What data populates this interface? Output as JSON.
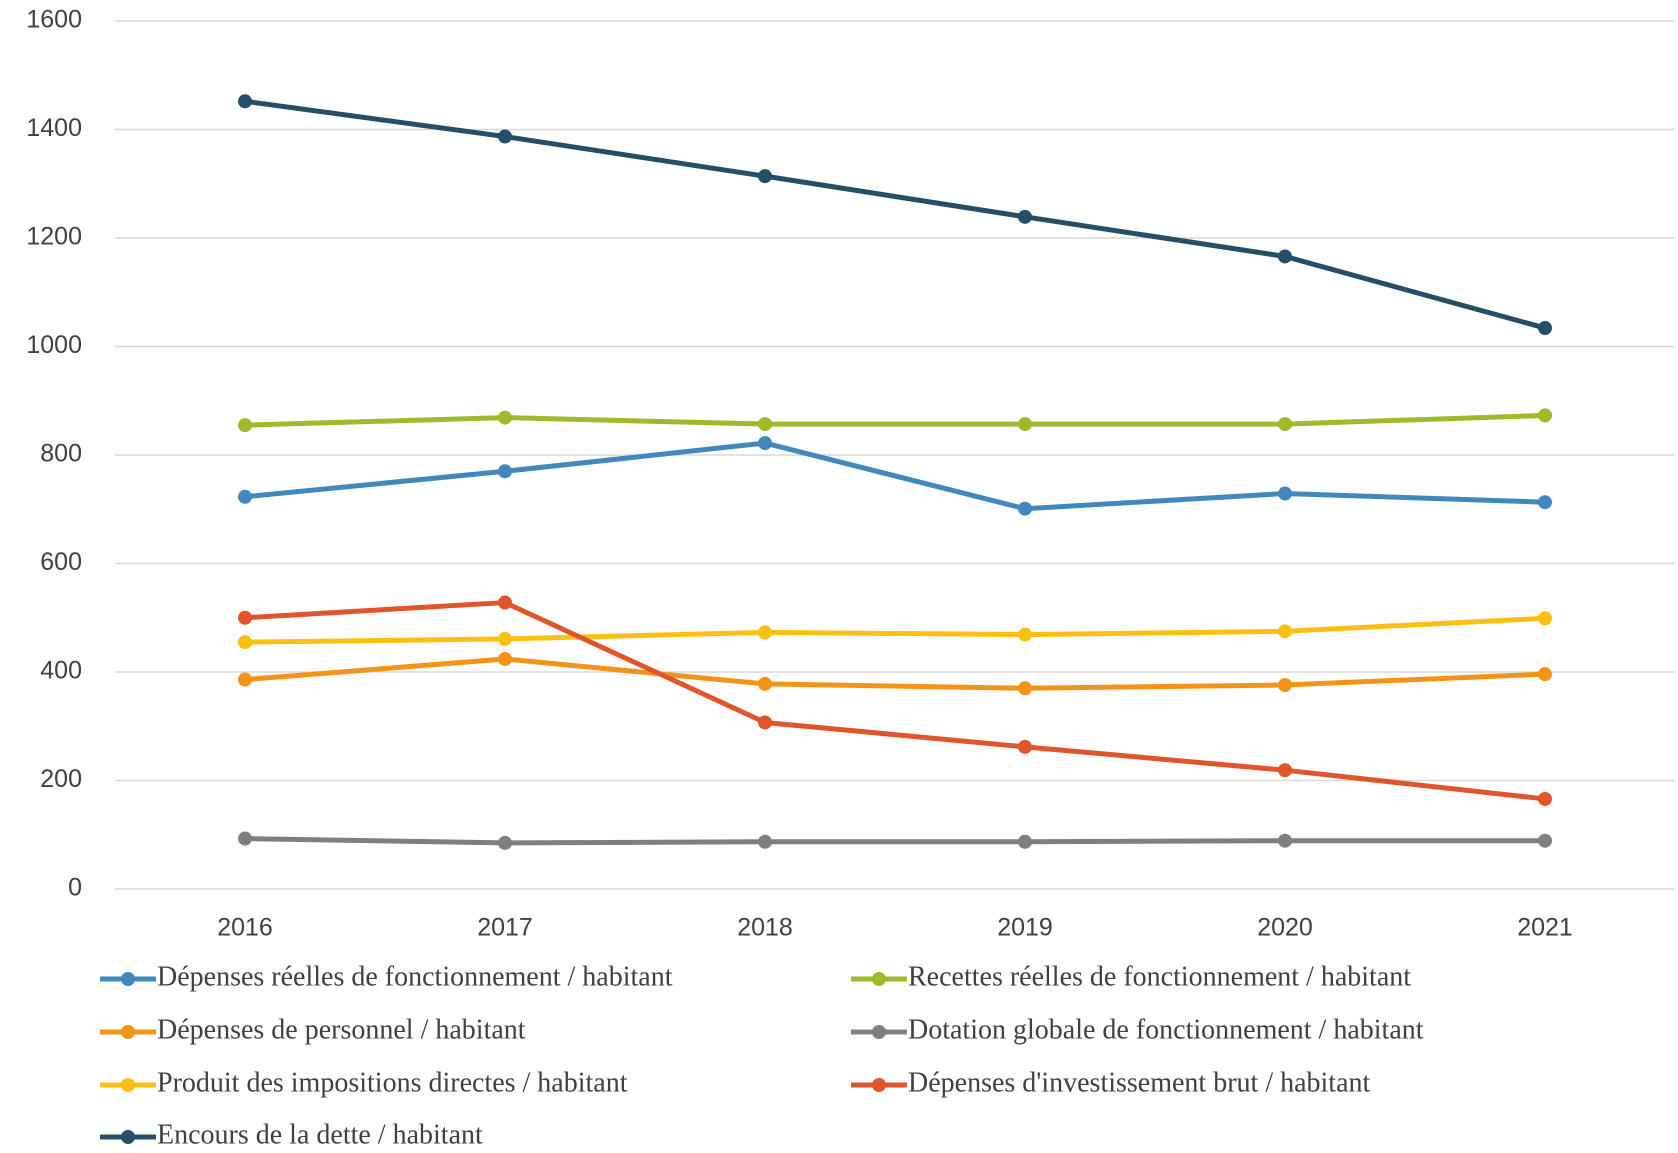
{
  "chart_data": {
    "type": "line",
    "categories": [
      "2016",
      "2017",
      "2018",
      "2019",
      "2020",
      "2021"
    ],
    "series": [
      {
        "name": "Dépenses réelles de fonctionnement / habitant",
        "color": "#4189bd",
        "values": [
          723,
          770,
          822,
          701,
          729,
          713
        ]
      },
      {
        "name": "Recettes réelles de fonctionnement / habitant",
        "color": "#9cba2c",
        "values": [
          855,
          869,
          857,
          857,
          857,
          873
        ]
      },
      {
        "name": "Dépenses de personnel / habitant",
        "color": "#f39418",
        "values": [
          386,
          424,
          378,
          370,
          376,
          396
        ]
      },
      {
        "name": "Dotation globale de fonctionnement / habitant",
        "color": "#7f7f7f",
        "values": [
          93,
          85,
          87,
          87,
          89,
          89
        ]
      },
      {
        "name": "Produit des impositions directes / habitant",
        "color": "#fdc012",
        "values": [
          455,
          461,
          473,
          469,
          475,
          499
        ]
      },
      {
        "name": "Dépenses d'investissement brut / habitant",
        "color": "#e0552b",
        "values": [
          500,
          528,
          307,
          262,
          219,
          166
        ]
      },
      {
        "name": "Encours de la dette / habitant",
        "color": "#264e69",
        "values": [
          1452,
          1387,
          1314,
          1239,
          1166,
          1034
        ]
      }
    ],
    "ylim": [
      0,
      1600
    ],
    "yticks": [
      0,
      200,
      400,
      600,
      800,
      1000,
      1200,
      1400,
      1600
    ],
    "grid": true
  }
}
